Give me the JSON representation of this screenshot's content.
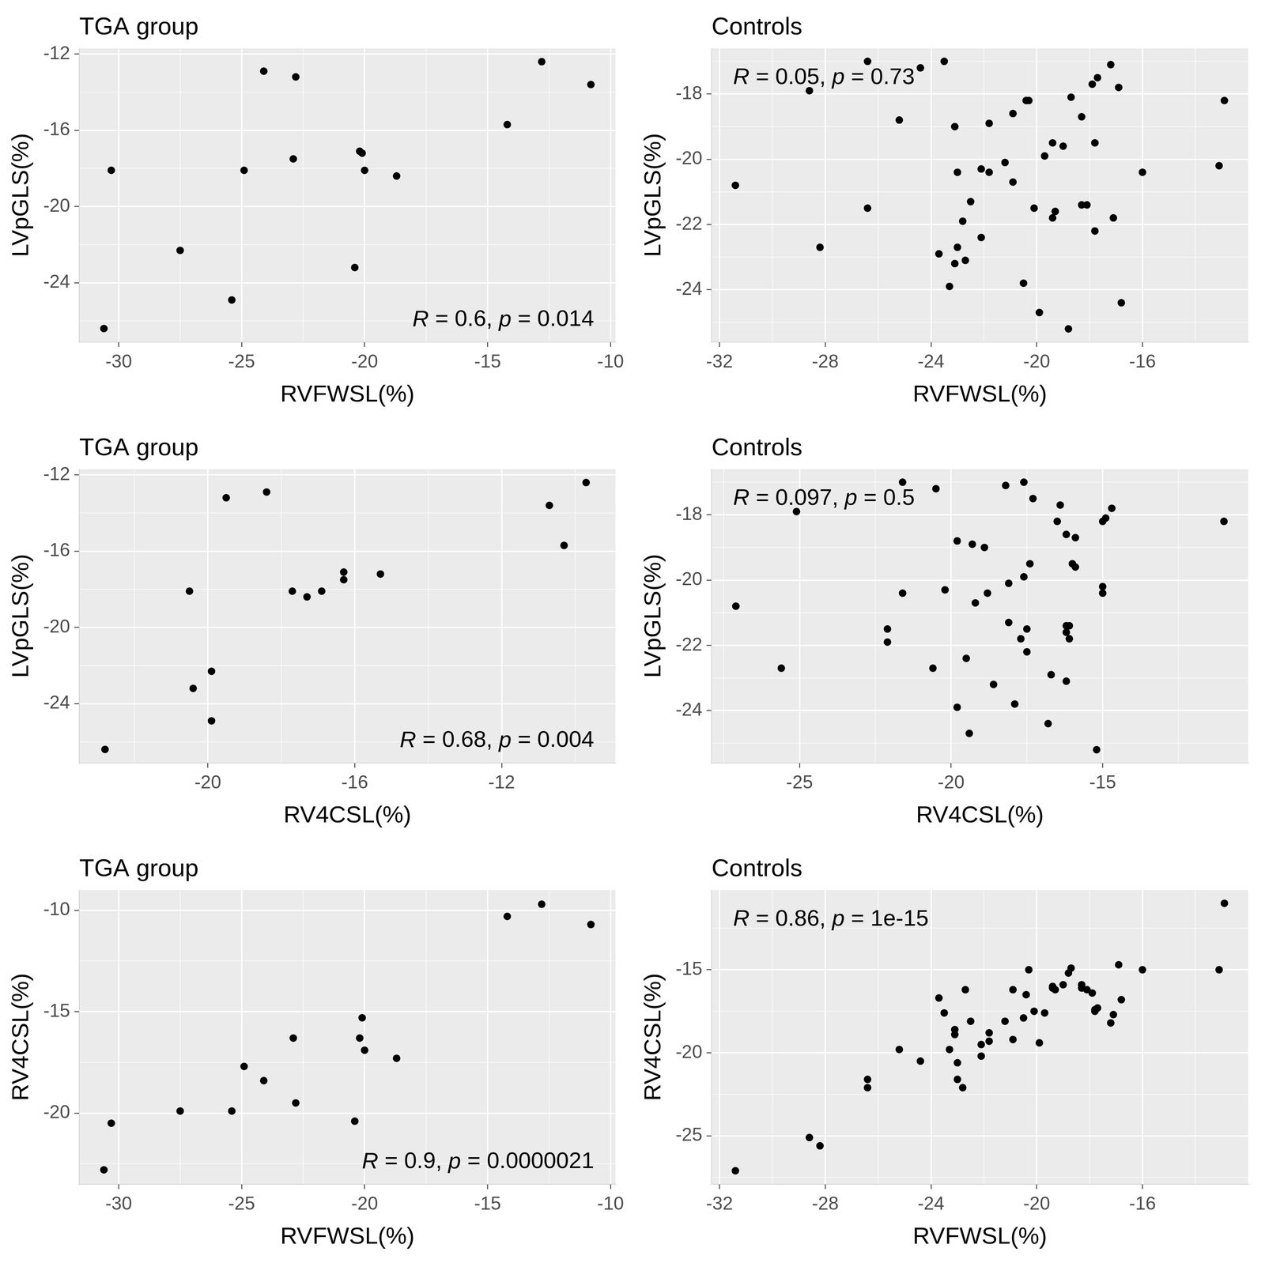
{
  "chart_data": [
    {
      "type": "scatter",
      "title": "TGA group",
      "xlabel": "RVFWSL(%)",
      "ylabel": "LVpGLS(%)",
      "x": [
        -30.6,
        -30.3,
        -27.5,
        -25.4,
        -24.9,
        -24.1,
        -22.9,
        -22.8,
        -20.4,
        -20.2,
        -20.1,
        -20.0,
        -18.7,
        -14.2,
        -12.8,
        -10.8
      ],
      "values": [
        -26.4,
        -18.1,
        -22.3,
        -24.9,
        -18.1,
        -12.9,
        -17.5,
        -13.2,
        -23.2,
        -17.1,
        -17.2,
        -18.1,
        -18.4,
        -15.7,
        -12.4,
        -13.6
      ],
      "xlim": [
        -31.6,
        -9.8
      ],
      "ylim": [
        -27.1,
        -11.7
      ],
      "xticks": [
        -30,
        -25,
        -20,
        -15,
        -10
      ],
      "yticks": [
        -24,
        -20,
        -16,
        -12
      ],
      "grid": true,
      "color": "#000000",
      "marker": "circle",
      "annotation": "R = 0.6, p = 0.014"
    },
    {
      "type": "scatter",
      "title": "Controls",
      "xlabel": "RVFWSL(%)",
      "ylabel": "LVpGLS(%)",
      "x": [
        -31.4,
        -28.6,
        -28.2,
        -26.4,
        -26.4,
        -25.2,
        -24.4,
        -23.5,
        -23.7,
        -23.3,
        -23.1,
        -23.1,
        -23.0,
        -23.0,
        -22.8,
        -22.7,
        -22.5,
        -22.1,
        -22.1,
        -21.8,
        -21.8,
        -21.2,
        -20.9,
        -20.9,
        -20.5,
        -20.4,
        -20.3,
        -20.1,
        -19.9,
        -19.7,
        -19.4,
        -19.4,
        -19.3,
        -19.0,
        -18.8,
        -18.7,
        -18.3,
        -18.3,
        -18.1,
        -17.9,
        -17.8,
        -17.7,
        -17.8,
        -17.2,
        -17.1,
        -16.9,
        -16.8,
        -16.0,
        -13.1,
        -12.9
      ],
      "values": [
        -20.8,
        -17.9,
        -22.7,
        -17.0,
        -21.5,
        -18.8,
        -17.2,
        -17.0,
        -22.9,
        -23.9,
        -23.2,
        -19.0,
        -22.7,
        -20.4,
        -21.9,
        -23.1,
        -21.3,
        -22.4,
        -20.3,
        -18.9,
        -20.4,
        -20.1,
        -18.6,
        -20.7,
        -23.8,
        -18.2,
        -18.2,
        -21.5,
        -24.7,
        -19.9,
        -19.5,
        -21.8,
        -21.6,
        -19.6,
        -25.2,
        -18.1,
        -18.7,
        -21.4,
        -21.4,
        -17.7,
        -19.5,
        -17.5,
        -22.2,
        -17.1,
        -21.8,
        -17.8,
        -24.4,
        -20.4,
        -20.2,
        -18.2
      ],
      "xlim": [
        -32.3,
        -12.0
      ],
      "ylim": [
        -25.6,
        -16.6
      ],
      "xticks": [
        -32,
        -28,
        -24,
        -20,
        -16
      ],
      "yticks": [
        -24,
        -22,
        -20,
        -18
      ],
      "grid": true,
      "color": "#000000",
      "marker": "circle",
      "annotation": "R = 0.05, p = 0.73"
    },
    {
      "type": "scatter",
      "title": "TGA group",
      "xlabel": "RV4CSL(%)",
      "ylabel": "LVpGLS(%)",
      "x": [
        -22.8,
        -20.5,
        -19.9,
        -19.9,
        -17.7,
        -18.4,
        -16.3,
        -19.5,
        -20.4,
        -16.3,
        -15.3,
        -16.9,
        -17.3,
        -10.3,
        -9.7,
        -10.7
      ],
      "values": [
        -26.4,
        -18.1,
        -22.3,
        -24.9,
        -18.1,
        -12.9,
        -17.5,
        -13.2,
        -23.2,
        -17.1,
        -17.2,
        -18.1,
        -18.4,
        -15.7,
        -12.4,
        -13.6
      ],
      "xlim": [
        -23.5,
        -8.9
      ],
      "ylim": [
        -27.1,
        -11.7
      ],
      "xticks": [
        -20,
        -16,
        -12
      ],
      "yticks": [
        -24,
        -20,
        -16,
        -12
      ],
      "grid": true,
      "color": "#000000",
      "marker": "circle",
      "annotation": "R = 0.68, p = 0.004"
    },
    {
      "type": "scatter",
      "title": "Controls",
      "xlabel": "RV4CSL(%)",
      "ylabel": "LVpGLS(%)",
      "x": [
        -27.1,
        -25.1,
        -25.6,
        -21.6,
        -22.1,
        -19.8,
        -20.5,
        -17.6,
        -16.7,
        -19.8,
        -18.6,
        -18.9,
        -20.6,
        -21.6,
        -22.1,
        -16.2,
        -18.1,
        -19.5,
        -20.2,
        -19.3,
        -18.8,
        -18.1,
        -16.2,
        -19.2,
        -17.9,
        -16.5,
        -15.0,
        -17.5,
        -19.4,
        -17.6,
        -16.0,
        -16.1,
        -16.2,
        -15.9,
        -15.2,
        -14.9,
        -15.9,
        -16.1,
        -16.2,
        -16.4,
        -17.4,
        -17.3,
        -17.5,
        -18.2,
        -17.7,
        -14.7,
        -16.8,
        -15.0,
        -15.0,
        -11.0
      ],
      "values": [
        -20.8,
        -17.9,
        -22.7,
        -17.0,
        -21.5,
        -18.8,
        -17.2,
        -17.0,
        -22.9,
        -23.9,
        -23.2,
        -19.0,
        -22.7,
        -20.4,
        -21.9,
        -23.1,
        -21.3,
        -22.4,
        -20.3,
        -18.9,
        -20.4,
        -20.1,
        -18.6,
        -20.7,
        -23.8,
        -18.2,
        -18.2,
        -21.5,
        -24.7,
        -19.9,
        -19.5,
        -21.8,
        -21.6,
        -19.6,
        -25.2,
        -18.1,
        -18.7,
        -21.4,
        -21.4,
        -17.7,
        -19.5,
        -17.5,
        -22.2,
        -17.1,
        -21.8,
        -17.8,
        -24.4,
        -20.4,
        -20.2,
        -18.2
      ],
      "xlim": [
        -27.9,
        -10.2
      ],
      "ylim": [
        -25.6,
        -16.6
      ],
      "xticks": [
        -25,
        -20,
        -15
      ],
      "yticks": [
        -24,
        -22,
        -20,
        -18
      ],
      "grid": true,
      "color": "#000000",
      "marker": "circle",
      "annotation": "R = 0.097, p = 0.5"
    },
    {
      "type": "scatter",
      "title": "TGA group",
      "xlabel": "RVFWSL(%)",
      "ylabel": "RV4CSL(%)",
      "x": [
        -30.6,
        -30.3,
        -27.5,
        -25.4,
        -24.9,
        -24.1,
        -22.9,
        -22.8,
        -20.4,
        -20.2,
        -20.1,
        -20.0,
        -18.7,
        -14.2,
        -12.8,
        -10.8
      ],
      "values": [
        -22.8,
        -20.5,
        -19.9,
        -19.9,
        -17.7,
        -18.4,
        -16.3,
        -19.5,
        -20.4,
        -16.3,
        -15.3,
        -16.9,
        -17.3,
        -10.3,
        -9.7,
        -10.7
      ],
      "xlim": [
        -31.6,
        -9.8
      ],
      "ylim": [
        -23.5,
        -9.0
      ],
      "xticks": [
        -30,
        -25,
        -20,
        -15,
        -10
      ],
      "yticks": [
        -20,
        -15,
        -10
      ],
      "grid": true,
      "color": "#000000",
      "marker": "circle",
      "annotation": "R = 0.9, p = 0.0000021"
    },
    {
      "type": "scatter",
      "title": "Controls",
      "xlabel": "RVFWSL(%)",
      "ylabel": "RV4CSL(%)",
      "x": [
        -31.4,
        -28.6,
        -28.2,
        -26.4,
        -26.4,
        -25.2,
        -24.4,
        -23.5,
        -23.7,
        -23.3,
        -23.1,
        -23.1,
        -23.0,
        -23.0,
        -22.8,
        -22.7,
        -22.5,
        -22.1,
        -22.1,
        -21.8,
        -21.8,
        -21.2,
        -20.9,
        -20.9,
        -20.5,
        -20.4,
        -20.3,
        -20.1,
        -19.9,
        -19.7,
        -19.4,
        -19.4,
        -19.3,
        -19.0,
        -18.8,
        -18.7,
        -18.3,
        -18.3,
        -18.1,
        -17.9,
        -17.8,
        -17.7,
        -17.8,
        -17.2,
        -17.1,
        -16.9,
        -16.8,
        -16.0,
        -13.1,
        -12.9
      ],
      "values": [
        -27.1,
        -25.1,
        -25.6,
        -21.6,
        -22.1,
        -19.8,
        -20.5,
        -17.6,
        -16.7,
        -19.8,
        -18.6,
        -18.9,
        -20.6,
        -21.6,
        -22.1,
        -16.2,
        -18.1,
        -19.5,
        -20.2,
        -19.3,
        -18.8,
        -18.1,
        -16.2,
        -19.2,
        -17.9,
        -16.5,
        -15.0,
        -17.5,
        -19.4,
        -17.6,
        -16.0,
        -16.1,
        -16.2,
        -15.9,
        -15.2,
        -14.9,
        -15.9,
        -16.1,
        -16.2,
        -16.4,
        -17.4,
        -17.3,
        -17.5,
        -18.2,
        -17.7,
        -14.7,
        -16.8,
        -15.0,
        -15.0,
        -11.0
      ],
      "xlim": [
        -32.3,
        -12.0
      ],
      "ylim": [
        -27.9,
        -10.2
      ],
      "xticks": [
        -32,
        -28,
        -24,
        -20,
        -16
      ],
      "yticks": [
        -25,
        -20,
        -15
      ],
      "grid": true,
      "color": "#000000",
      "marker": "circle",
      "annotation": "R = 0.86, p = 1e-15"
    }
  ]
}
